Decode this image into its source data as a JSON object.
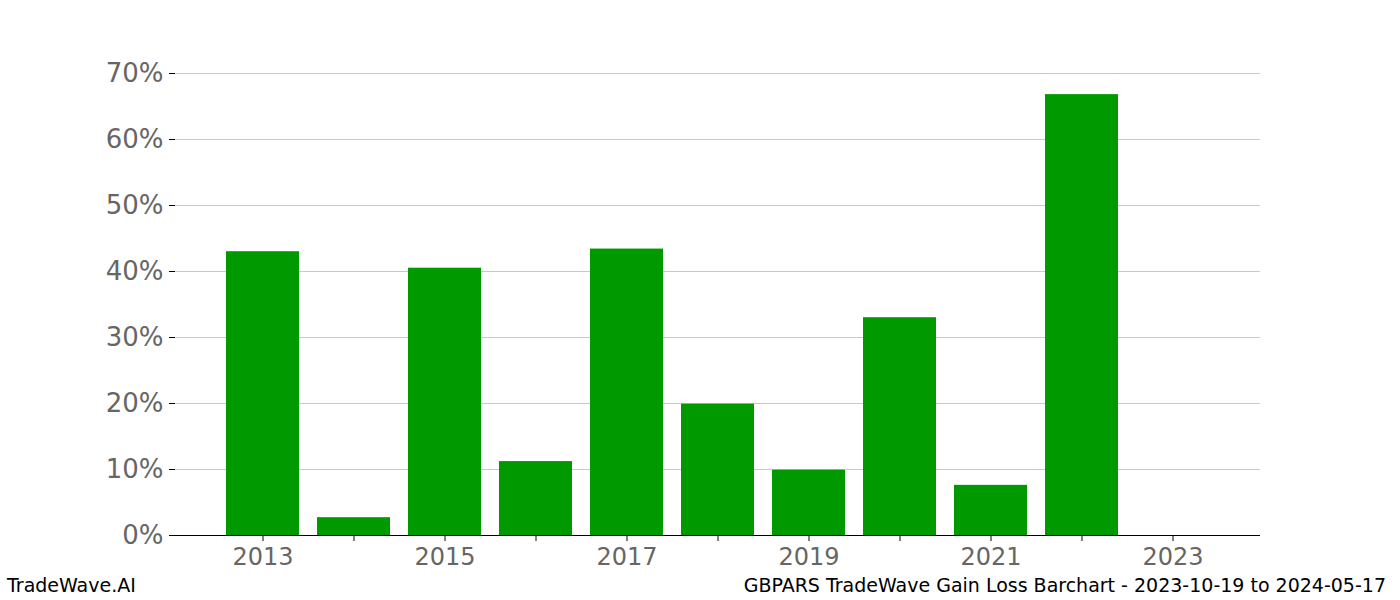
{
  "chart_data": {
    "type": "bar",
    "categories": [
      "2013",
      null,
      "2015",
      null,
      "2017",
      null,
      "2019",
      null,
      "2021",
      null,
      "2023"
    ],
    "values": [
      43,
      2.7,
      40.5,
      11.2,
      43.4,
      19.9,
      9.9,
      33,
      7.6,
      66.8,
      0
    ],
    "color": "#009900",
    "ylim": [
      0,
      70
    ],
    "yticks": [
      {
        "value": 0,
        "label": "0%"
      },
      {
        "value": 10,
        "label": "10%"
      },
      {
        "value": 20,
        "label": "20%"
      },
      {
        "value": 30,
        "label": "30%"
      },
      {
        "value": 40,
        "label": "40%"
      },
      {
        "value": 50,
        "label": "50%"
      },
      {
        "value": 60,
        "label": "60%"
      },
      {
        "value": 70,
        "label": "70%"
      }
    ],
    "grid": true,
    "footer_left": "TradeWave.AI",
    "caption": "GBPARS TradeWave Gain Loss Barchart - 2023-10-19 to 2024-05-17"
  }
}
